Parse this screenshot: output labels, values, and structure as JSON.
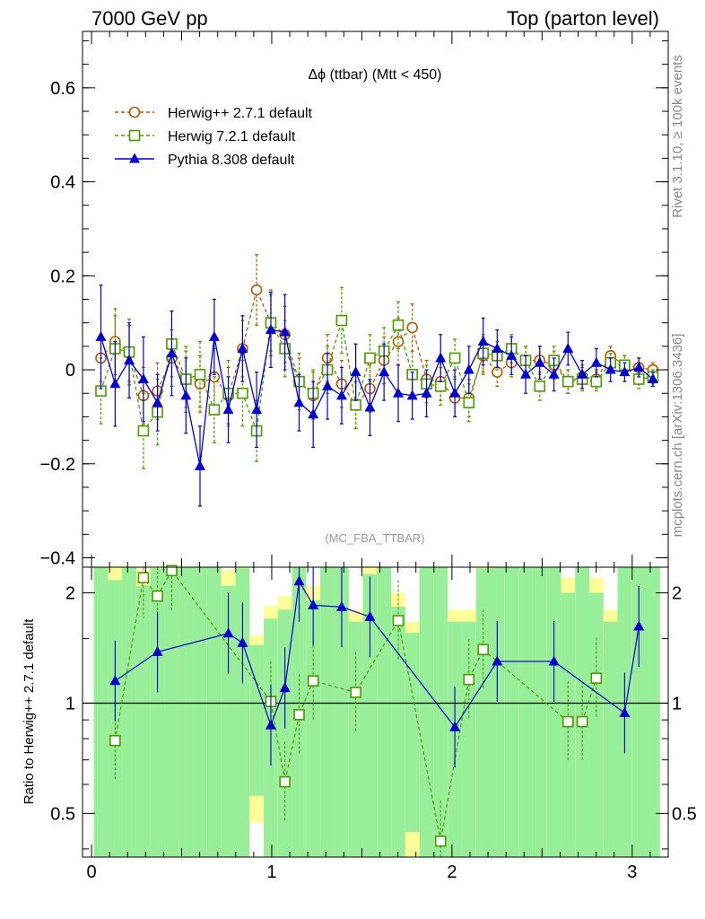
{
  "header": {
    "left": "7000 GeV pp",
    "right": "Top (parton level)"
  },
  "side_labels": {
    "rivet": "Rivet 3.1.10, ≥ 100k events",
    "mcplots": "mcplots.cern.ch [arXiv:1306.3436]"
  },
  "chart_data": [
    {
      "type": "line",
      "title": "Δϕ (ttbar) (Mtt < 450)",
      "watermark": "(MC_FBA_TTBAR)",
      "xlim": [
        -0.05,
        3.2
      ],
      "ylim": [
        -0.42,
        0.72
      ],
      "y_ticks": [
        -0.4,
        -0.2,
        0,
        0.2,
        0.4,
        0.6
      ],
      "y_tick_labels": [
        "−0.4",
        "−0.2",
        "0",
        "0.2",
        "0.4",
        "0.6"
      ],
      "legend_position": "top-left",
      "series": [
        {
          "name": "Herwig++ 2.7.1 default",
          "color": "#b35900",
          "marker": "open-circle",
          "linestyle": "dashed",
          "x": [
            0.052,
            0.131,
            0.209,
            0.288,
            0.366,
            0.445,
            0.524,
            0.602,
            0.681,
            0.759,
            0.838,
            0.916,
            0.995,
            1.073,
            1.152,
            1.23,
            1.309,
            1.388,
            1.466,
            1.545,
            1.623,
            1.702,
            1.78,
            1.859,
            1.937,
            2.016,
            2.094,
            2.173,
            2.251,
            2.33,
            2.409,
            2.487,
            2.566,
            2.644,
            2.723,
            2.801,
            2.88,
            2.958,
            3.037,
            3.115
          ],
          "y": [
            0.025,
            0.06,
            0.035,
            -0.055,
            -0.045,
            0.025,
            -0.02,
            -0.03,
            -0.015,
            -0.055,
            0.045,
            0.17,
            0.1,
            0.075,
            -0.025,
            -0.055,
            0.025,
            -0.03,
            -0.075,
            -0.04,
            0.02,
            0.06,
            0.09,
            -0.02,
            -0.025,
            -0.06,
            -0.06,
            0.03,
            -0.005,
            0.015,
            0.02,
            0.02,
            0.01,
            -0.025,
            -0.015,
            -0.02,
            0.03,
            0.01,
            0.005,
            0.0
          ],
          "err": [
            0.05,
            0.07,
            0.06,
            0.06,
            0.06,
            0.06,
            0.06,
            0.06,
            0.06,
            0.06,
            0.06,
            0.075,
            0.07,
            0.06,
            0.05,
            0.05,
            0.05,
            0.05,
            0.05,
            0.05,
            0.05,
            0.05,
            0.05,
            0.04,
            0.04,
            0.04,
            0.04,
            0.04,
            0.03,
            0.03,
            0.03,
            0.03,
            0.03,
            0.025,
            0.025,
            0.02,
            0.02,
            0.02,
            0.02,
            0.015
          ]
        },
        {
          "name": "Herwig 7.2.1 default",
          "color": "#4d9900",
          "marker": "open-square",
          "linestyle": "dashed",
          "x": [
            0.052,
            0.131,
            0.209,
            0.288,
            0.366,
            0.445,
            0.524,
            0.602,
            0.681,
            0.759,
            0.838,
            0.916,
            0.995,
            1.073,
            1.152,
            1.23,
            1.309,
            1.388,
            1.466,
            1.545,
            1.623,
            1.702,
            1.78,
            1.859,
            1.937,
            2.016,
            2.094,
            2.173,
            2.251,
            2.33,
            2.409,
            2.487,
            2.566,
            2.644,
            2.723,
            2.801,
            2.88,
            2.958,
            3.037,
            3.115
          ],
          "y": [
            -0.045,
            0.045,
            0.038,
            -0.13,
            -0.09,
            0.055,
            -0.02,
            -0.01,
            -0.085,
            -0.05,
            -0.05,
            -0.13,
            0.1,
            0.045,
            -0.025,
            -0.05,
            0.0,
            0.105,
            -0.075,
            0.025,
            0.04,
            0.095,
            -0.01,
            -0.03,
            -0.035,
            0.025,
            -0.07,
            0.035,
            0.03,
            0.045,
            0.02,
            -0.035,
            0.02,
            -0.025,
            -0.02,
            -0.025,
            0.015,
            0.01,
            -0.02,
            -0.015
          ],
          "err": [
            0.07,
            0.07,
            0.07,
            0.08,
            0.07,
            0.07,
            0.07,
            0.07,
            0.07,
            0.07,
            0.07,
            0.065,
            0.06,
            0.06,
            0.06,
            0.05,
            0.05,
            0.07,
            0.05,
            0.05,
            0.05,
            0.05,
            0.05,
            0.04,
            0.04,
            0.04,
            0.04,
            0.04,
            0.03,
            0.03,
            0.03,
            0.03,
            0.03,
            0.025,
            0.025,
            0.02,
            0.02,
            0.02,
            0.02,
            0.015
          ]
        },
        {
          "name": "Pythia 8.308 default",
          "color": "#0000cc",
          "marker": "filled-triangle",
          "linestyle": "solid",
          "x": [
            0.052,
            0.131,
            0.209,
            0.288,
            0.366,
            0.445,
            0.524,
            0.602,
            0.681,
            0.759,
            0.838,
            0.916,
            0.995,
            1.073,
            1.152,
            1.23,
            1.309,
            1.388,
            1.466,
            1.545,
            1.623,
            1.702,
            1.78,
            1.859,
            1.937,
            2.016,
            2.094,
            2.173,
            2.251,
            2.33,
            2.409,
            2.487,
            2.566,
            2.644,
            2.723,
            2.801,
            2.88,
            2.958,
            3.037,
            3.115
          ],
          "y": [
            0.07,
            -0.03,
            0.02,
            -0.02,
            -0.07,
            0.035,
            -0.055,
            -0.205,
            0.07,
            -0.085,
            0.045,
            -0.085,
            0.085,
            0.08,
            -0.07,
            -0.095,
            -0.035,
            -0.055,
            -0.005,
            -0.08,
            -0.005,
            -0.05,
            -0.055,
            -0.05,
            0.025,
            -0.05,
            0.0,
            0.06,
            0.045,
            0.03,
            -0.01,
            0.015,
            -0.01,
            0.045,
            -0.01,
            0.015,
            0.0,
            -0.005,
            0.005,
            -0.02
          ],
          "err": [
            0.11,
            0.09,
            0.08,
            0.09,
            0.06,
            0.09,
            0.08,
            0.085,
            0.08,
            0.07,
            0.07,
            0.08,
            0.08,
            0.08,
            0.06,
            0.07,
            0.07,
            0.06,
            0.06,
            0.06,
            0.06,
            0.06,
            0.05,
            0.05,
            0.05,
            0.05,
            0.05,
            0.05,
            0.04,
            0.04,
            0.04,
            0.035,
            0.035,
            0.035,
            0.03,
            0.03,
            0.025,
            0.02,
            0.02,
            0.015
          ]
        }
      ]
    },
    {
      "type": "line",
      "ylabel": "Ratio to Herwig++ 2.7.1 default",
      "xlim": [
        -0.05,
        3.2
      ],
      "ylim": [
        0.38,
        2.35
      ],
      "y_scale": "log",
      "x_ticks": [
        0,
        1,
        2,
        3
      ],
      "x_tick_labels": [
        "0",
        "1",
        "2",
        "3"
      ],
      "y_ticks": [
        0.5,
        1,
        2
      ],
      "y_tick_labels": [
        "0.5",
        "1",
        "2"
      ],
      "band_colors": {
        "inner": "#99ee99",
        "outer": "#ffff99"
      },
      "series": [
        {
          "name": "Herwig 7.2.1 default",
          "color": "#4d9900",
          "marker": "open-square",
          "linestyle": "dashed",
          "x": [
            0.131,
            0.288,
            0.366,
            0.445,
            0.995,
            1.073,
            1.152,
            1.23,
            1.466,
            1.702,
            1.937,
            2.094,
            2.173,
            2.644,
            2.723,
            2.801
          ],
          "y": [
            0.79,
            2.2,
            1.96,
            2.3,
            1.01,
            0.61,
            0.93,
            1.15,
            1.07,
            1.68,
            0.42,
            1.16,
            1.4,
            0.89,
            0.89,
            1.17
          ]
        },
        {
          "name": "Pythia 8.308 default",
          "color": "#0000cc",
          "marker": "filled-triangle",
          "linestyle": "solid",
          "x": [
            0.131,
            0.366,
            0.759,
            0.838,
            0.995,
            1.073,
            1.152,
            1.23,
            1.388,
            1.545,
            2.016,
            2.251,
            2.566,
            2.958,
            3.037
          ],
          "y": [
            1.15,
            1.38,
            1.55,
            1.46,
            0.87,
            1.1,
            2.15,
            1.85,
            1.83,
            1.72,
            0.86,
            1.3,
            1.3,
            0.94,
            1.62
          ]
        }
      ]
    }
  ]
}
